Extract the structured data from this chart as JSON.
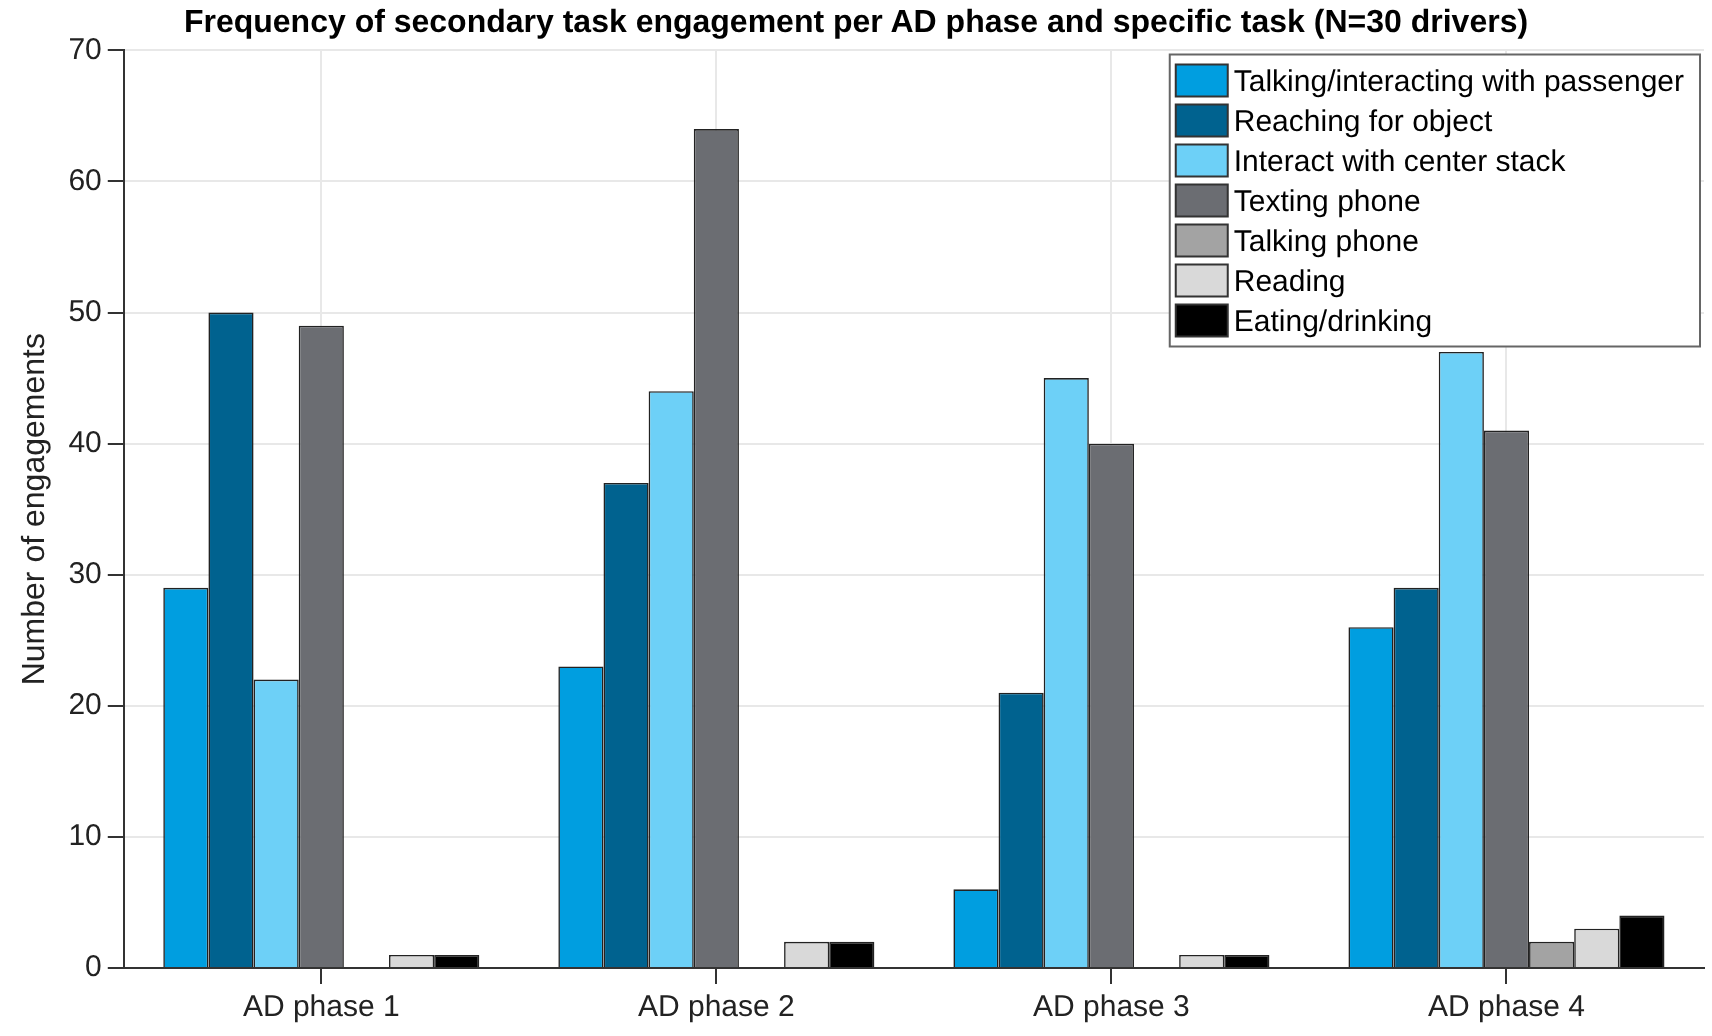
{
  "chart_data": {
    "type": "bar",
    "title": "Frequency of secondary task engagement per AD phase and specific task (N=30 drivers)",
    "ylabel": "Number of engagements",
    "categories": [
      "AD phase 1",
      "AD phase 2",
      "AD phase 3",
      "AD phase 4"
    ],
    "series": [
      {
        "name": "Talking/interacting with passenger",
        "color": "#009ee0",
        "values": [
          29,
          23,
          6,
          26
        ]
      },
      {
        "name": "Reaching for object",
        "color": "#00628f",
        "values": [
          50,
          37,
          21,
          29
        ]
      },
      {
        "name": "Interact with center stack",
        "color": "#6dd0f7",
        "values": [
          22,
          44,
          45,
          47
        ]
      },
      {
        "name": "Texting phone",
        "color": "#6b6d72",
        "values": [
          49,
          64,
          40,
          41
        ]
      },
      {
        "name": "Talking phone",
        "color": "#a3a3a3",
        "values": [
          0,
          0,
          0,
          2
        ]
      },
      {
        "name": "Reading",
        "color": "#d9d9d9",
        "values": [
          1,
          2,
          1,
          3
        ]
      },
      {
        "name": "Eating/drinking",
        "color": "#000000",
        "values": [
          1,
          2,
          1,
          4
        ]
      }
    ],
    "ylim": [
      0,
      70
    ],
    "yticks": [
      0,
      10,
      20,
      30,
      40,
      50,
      60,
      70
    ],
    "grid": true,
    "legend": "top right"
  }
}
